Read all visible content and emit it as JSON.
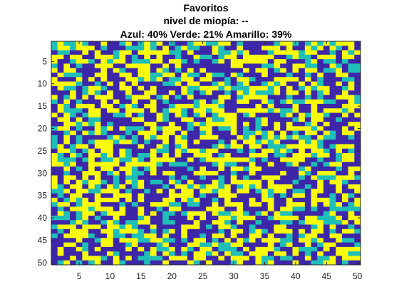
{
  "chart_data": {
    "type": "heatmap",
    "title": [
      "Favoritos",
      "nivel de miopía: --",
      "Azul: 40%   Verde: 21%   Amarillo: 39%"
    ],
    "rows": 50,
    "cols": 50,
    "x_ticks": [
      "5",
      "10",
      "15",
      "20",
      "25",
      "30",
      "35",
      "40",
      "45",
      "50"
    ],
    "y_ticks": [
      "5",
      "10",
      "15",
      "20",
      "25",
      "30",
      "35",
      "40",
      "45",
      "50"
    ],
    "categories": [
      {
        "name": "Azul",
        "color": "#3e26a8",
        "percent": 40
      },
      {
        "name": "Verde",
        "color": "#1fbfb8",
        "percent": 21
      },
      {
        "name": "Amarillo",
        "color": "#f9fb0e",
        "percent": 39
      }
    ],
    "axis_color": "#262626",
    "grid": false
  }
}
